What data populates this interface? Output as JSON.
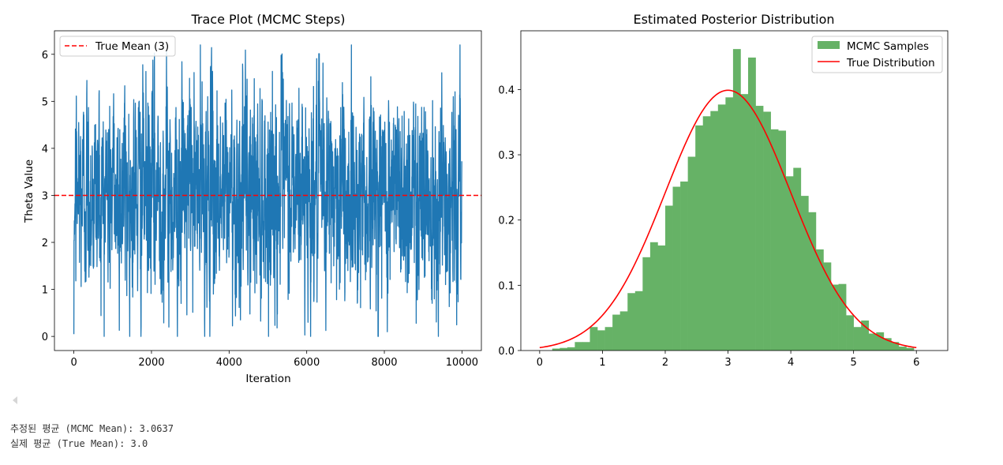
{
  "chart_data": [
    {
      "type": "line",
      "title": "Trace Plot (MCMC Steps)",
      "xlabel": "Iteration",
      "ylabel": "Theta Value",
      "xlim": [
        -500,
        10500
      ],
      "ylim": [
        -0.3,
        6.5
      ],
      "xticks": [
        "0",
        "2000",
        "4000",
        "6000",
        "8000",
        "10000"
      ],
      "yticks": [
        "0",
        "1",
        "2",
        "3",
        "4",
        "5",
        "6"
      ],
      "grid": false,
      "legend_position": "top-left",
      "series": [
        {
          "name": "",
          "color": "#1f77b4",
          "n_points": 10000,
          "approx_mean": 3.06,
          "approx_range": [
            0.0,
            6.2
          ]
        },
        {
          "name": "True Mean (3)",
          "style": "dashed",
          "color": "#ff0000",
          "y": 3
        }
      ]
    },
    {
      "type": "bar",
      "title": "Estimated Posterior Distribution",
      "xlabel": "",
      "ylabel": "",
      "xlim": [
        -0.3,
        6.5
      ],
      "ylim": [
        0,
        0.49
      ],
      "xticks": [
        "0",
        "1",
        "2",
        "3",
        "4",
        "5",
        "6"
      ],
      "yticks": [
        "0.0",
        "0.1",
        "0.2",
        "0.3",
        "0.4"
      ],
      "grid": false,
      "legend_position": "top-right",
      "bin_start": 0.2,
      "bin_width": 0.12,
      "histogram": [
        0.003,
        0.004,
        0.005,
        0.013,
        0.013,
        0.036,
        0.031,
        0.036,
        0.055,
        0.06,
        0.088,
        0.091,
        0.143,
        0.166,
        0.161,
        0.222,
        0.251,
        0.259,
        0.297,
        0.345,
        0.359,
        0.367,
        0.377,
        0.388,
        0.462,
        0.393,
        0.449,
        0.375,
        0.366,
        0.339,
        0.337,
        0.267,
        0.28,
        0.237,
        0.212,
        0.155,
        0.135,
        0.101,
        0.102,
        0.054,
        0.036,
        0.046,
        0.026,
        0.028,
        0.019,
        0.013,
        0.006,
        0.004
      ],
      "series": [
        {
          "name": "MCMC Samples",
          "kind": "histogram",
          "color": "#66b266"
        },
        {
          "name": "True Distribution",
          "kind": "normal_pdf",
          "mean": 3,
          "std": 1,
          "color": "#ff0000"
        }
      ]
    }
  ],
  "output": {
    "line1": "추정된 평균 (MCMC Mean): 3.0637",
    "line2": "실제 평균 (True Mean): 3.0"
  }
}
